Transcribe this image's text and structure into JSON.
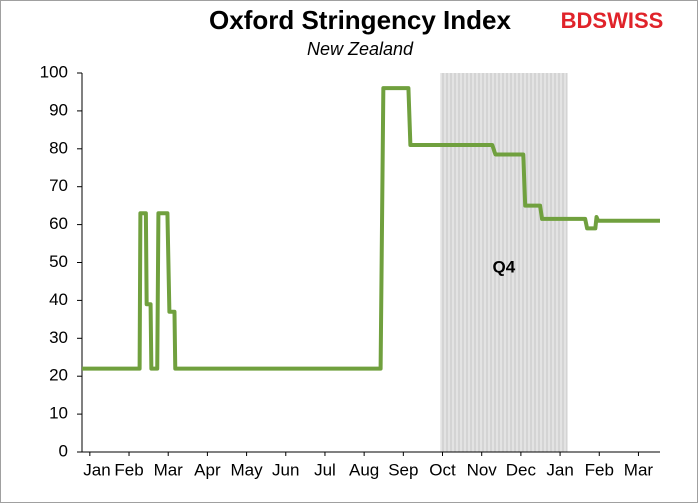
{
  "chart_data": {
    "type": "line",
    "title": "Oxford Stringency Index",
    "subtitle": "New Zealand",
    "brand": "BDSWISS",
    "shade": {
      "label": "Q4",
      "x": [
        9.44,
        12.69
      ]
    },
    "xlim": [
      0.3,
      15.05
    ],
    "ylim": [
      0,
      100
    ],
    "yticks": [
      0,
      10,
      20,
      30,
      40,
      50,
      60,
      70,
      80,
      90,
      100
    ],
    "xticks": [
      {
        "value": 0.5,
        "label": "Jan"
      },
      {
        "value": 1.5,
        "label": "Feb"
      },
      {
        "value": 2.5,
        "label": "Mar"
      },
      {
        "value": 3.5,
        "label": "Apr"
      },
      {
        "value": 4.5,
        "label": "May"
      },
      {
        "value": 5.5,
        "label": "Jun"
      },
      {
        "value": 6.5,
        "label": "Jul"
      },
      {
        "value": 7.5,
        "label": "Aug"
      },
      {
        "value": 8.5,
        "label": "Sep"
      },
      {
        "value": 9.5,
        "label": "Oct"
      },
      {
        "value": 10.5,
        "label": "Nov"
      },
      {
        "value": 11.5,
        "label": "Dec"
      },
      {
        "value": 12.5,
        "label": "Jan"
      },
      {
        "value": 13.5,
        "label": "Feb"
      },
      {
        "value": 14.5,
        "label": "Mar"
      }
    ],
    "x": [
      0.3,
      1.77,
      1.79,
      1.93,
      1.95,
      2.05,
      2.07,
      2.22,
      2.25,
      2.48,
      2.53,
      2.66,
      2.68,
      7.92,
      7.99,
      8.63,
      8.68,
      10.77,
      10.85,
      11.56,
      11.61,
      11.99,
      12.04,
      13.14,
      13.19,
      13.4,
      13.43,
      13.47,
      15.05
    ],
    "series": [
      {
        "color": "#70a03e",
        "values": [
          22,
          22,
          63,
          63,
          39,
          39,
          22,
          22,
          63,
          63,
          37,
          37,
          22,
          22,
          96,
          96,
          81,
          81,
          78.5,
          78.5,
          65,
          65,
          61.5,
          61.5,
          59,
          59,
          62,
          61,
          61
        ]
      }
    ]
  }
}
